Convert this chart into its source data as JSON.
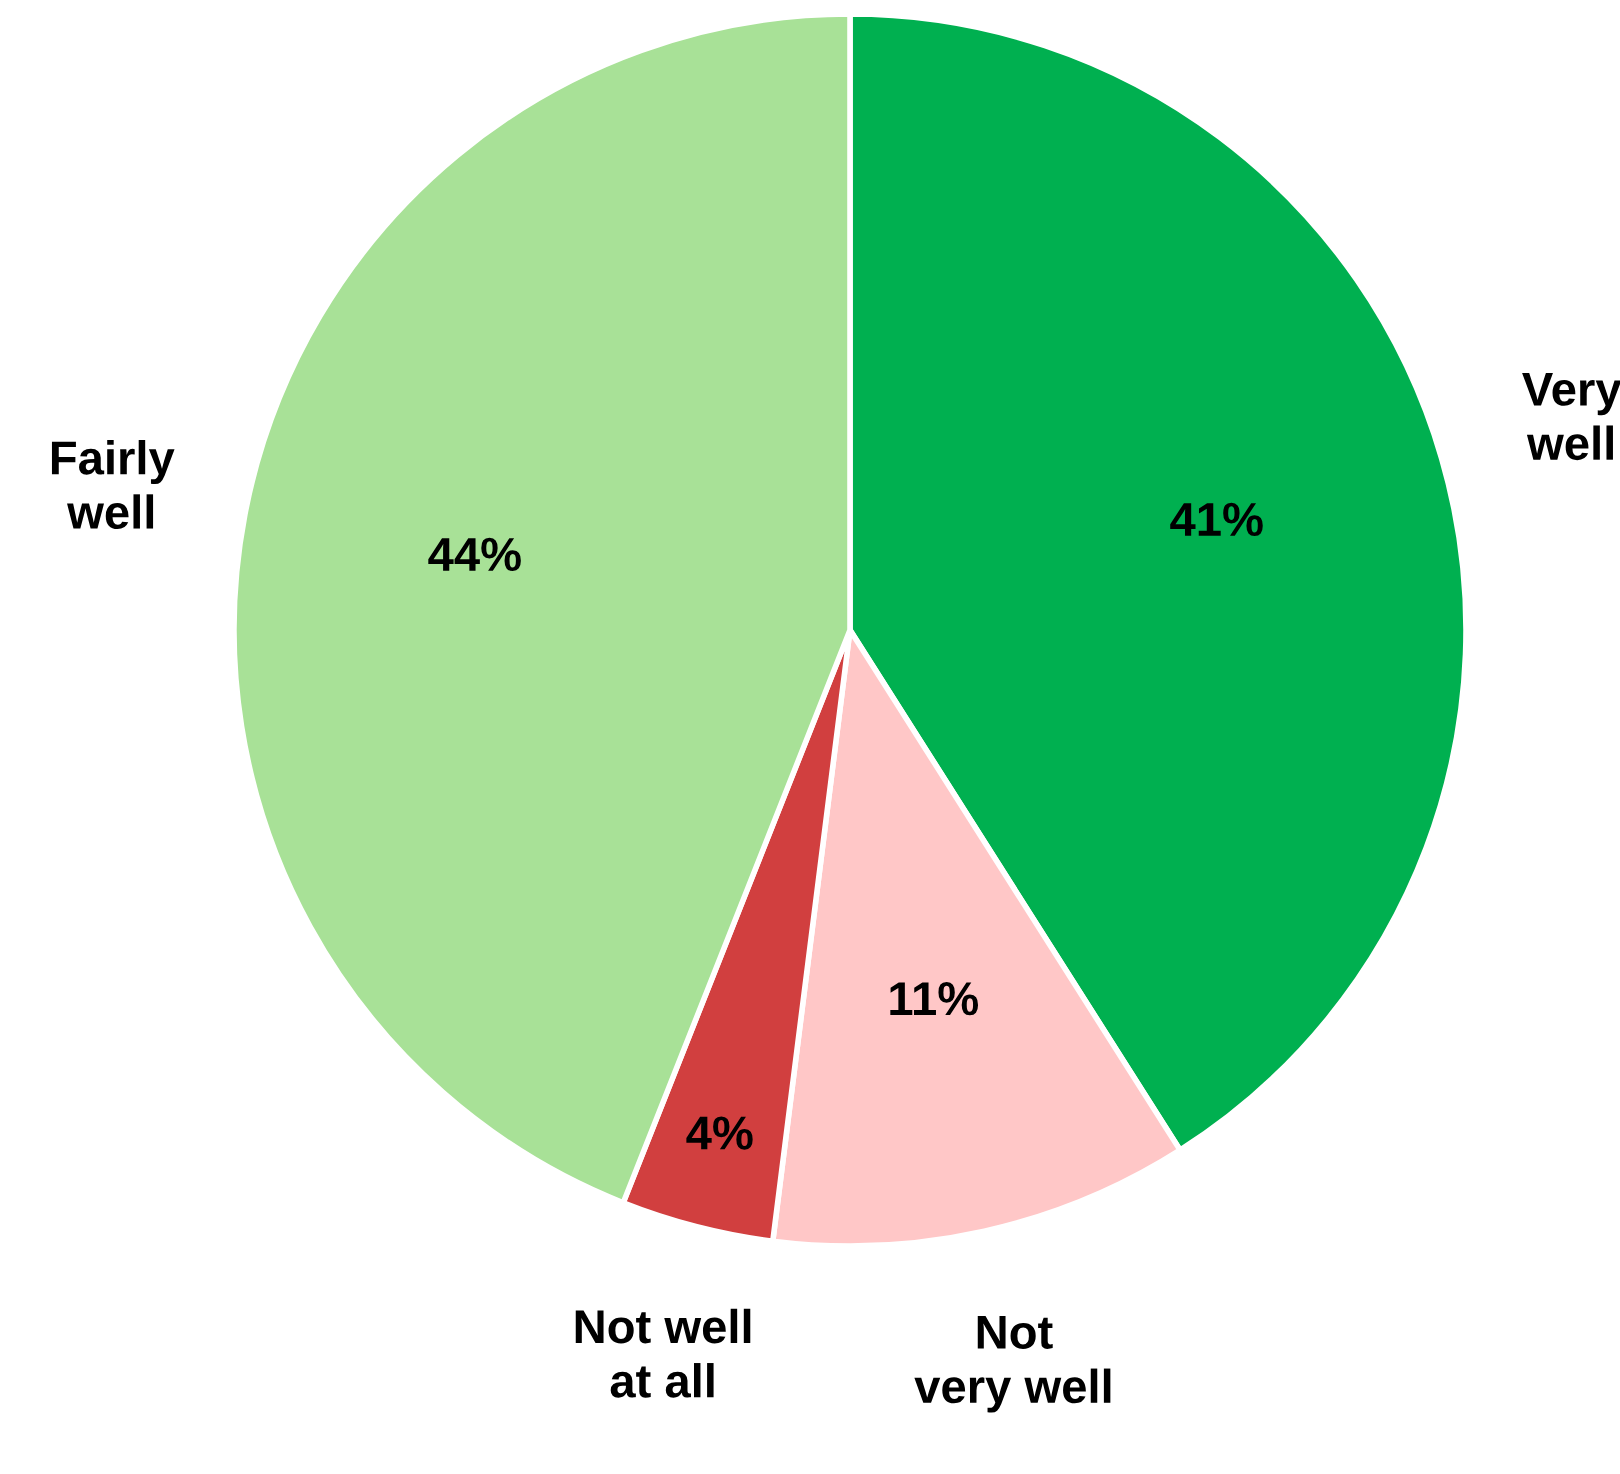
{
  "chart_data": {
    "type": "pie",
    "categories": [
      "Very\nwell",
      "Not\nvery well",
      "Not well\nat all",
      "Fairly\nwell"
    ],
    "values": [
      41,
      11,
      4,
      44
    ],
    "colors": [
      "#00b050",
      "#ffc7c7",
      "#d13f3f",
      "#a8e197"
    ],
    "value_labels": [
      "41%",
      "11%",
      "4%",
      "44%"
    ],
    "legend": false
  }
}
